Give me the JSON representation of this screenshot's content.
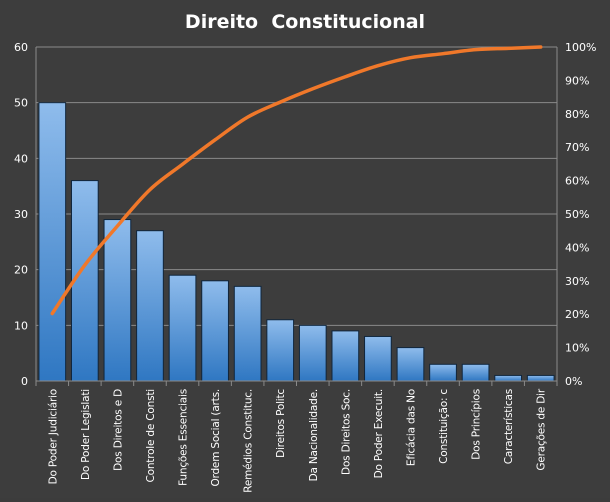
{
  "chart_data": {
    "type": "bar",
    "title": "Direito  Constitucional",
    "categories": [
      "Do Poder Judiciário",
      "Do Poder Legislati",
      "Dos Direitos e D",
      "Controle de Consti",
      "Funções Essenciais",
      "Ordem Social (arts.",
      "Remédios Constituc.",
      "Direitos Politc",
      "Da Nacionalidade.",
      "Dos Direitos Soc.",
      "Do Poder Execuit.",
      "Eficácia das No",
      "Constituição: c",
      "Dos Princípios",
      "Características",
      "Gerações de Dir"
    ],
    "series": [
      {
        "type": "bar",
        "axis": "left",
        "values": [
          50,
          36,
          29,
          27,
          19,
          18,
          17,
          11,
          10,
          9,
          8,
          6,
          3,
          3,
          1,
          1
        ]
      },
      {
        "type": "line",
        "axis": "right",
        "values": [
          20.2,
          34.7,
          46.4,
          57.3,
          64.9,
          72.2,
          79.0,
          83.5,
          87.5,
          91.1,
          94.4,
          96.8,
          98.0,
          99.2,
          99.6,
          100
        ]
      }
    ],
    "y_left": {
      "min": 0,
      "max": 60,
      "ticks": [
        "0",
        "10",
        "20",
        "30",
        "40",
        "50",
        "60"
      ]
    },
    "y_right": {
      "min": 0,
      "max": 100,
      "ticks": [
        "0%",
        "10%",
        "20%",
        "30%",
        "40%",
        "50%",
        "60%",
        "70%",
        "80%",
        "90%",
        "100%"
      ]
    },
    "grid": true,
    "legend": "none",
    "colors": {
      "background": "#3d3d3d",
      "bar_top": "#8fbcec",
      "bar_bottom": "#2f77c2",
      "bar_stroke": "#10263d",
      "line": "#f0782a",
      "grid": "#8a8a8a",
      "text": "#ffffff"
    }
  }
}
